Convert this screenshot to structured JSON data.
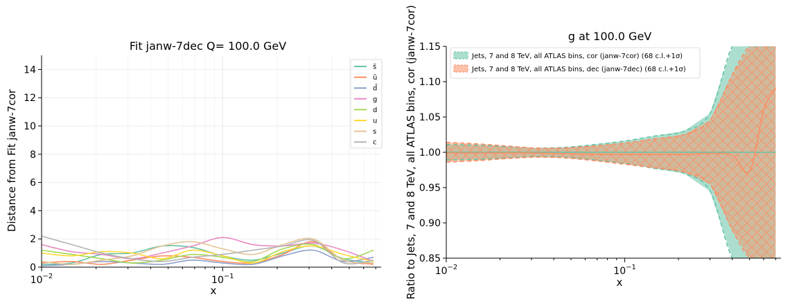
{
  "chart_data": [
    {
      "type": "line",
      "title": "Fit janw-7dec Q= 100.0 GeV",
      "xlabel": "x",
      "ylabel": "Distance from Fit janw-7cor",
      "xscale": "log",
      "xlim": [
        0.01,
        0.75
      ],
      "ylim": [
        0,
        15
      ],
      "yticks": [
        "0",
        "2",
        "4",
        "6",
        "8",
        "10",
        "12",
        "14"
      ],
      "xticks": [
        {
          "base": "10",
          "exp": "−2",
          "x": 0.01
        },
        {
          "base": "10",
          "exp": "−1",
          "x": 0.1
        }
      ],
      "grid": true,
      "legend_position": "top-right",
      "x": [
        0.01,
        0.0147,
        0.0215,
        0.0316,
        0.0464,
        0.0681,
        0.1,
        0.147,
        0.215,
        0.316,
        0.464,
        0.681
      ],
      "series": [
        {
          "name": "s̄",
          "color": "#66c2a5",
          "values": [
            0.2,
            0.3,
            0.9,
            1.0,
            1.5,
            1.4,
            0.8,
            0.5,
            1.0,
            1.5,
            0.6,
            0.3
          ]
        },
        {
          "name": "ū",
          "color": "#fc8d62",
          "values": [
            0.3,
            0.4,
            0.2,
            0.5,
            0.8,
            0.7,
            0.4,
            0.3,
            0.9,
            1.8,
            0.5,
            0.2
          ]
        },
        {
          "name": "d̄",
          "color": "#8da0cb",
          "values": [
            0.1,
            0.2,
            0.4,
            0.3,
            0.2,
            0.5,
            0.3,
            0.2,
            0.8,
            1.2,
            0.4,
            0.7
          ]
        },
        {
          "name": "g",
          "color": "#e78ac3",
          "values": [
            1.6,
            1.1,
            0.9,
            0.6,
            1.0,
            1.5,
            2.1,
            1.6,
            1.5,
            1.7,
            1.2,
            0.4
          ]
        },
        {
          "name": "d",
          "color": "#a6d854",
          "values": [
            1.2,
            0.9,
            0.6,
            0.3,
            0.5,
            0.9,
            0.7,
            0.4,
            1.3,
            1.6,
            0.6,
            1.2
          ]
        },
        {
          "name": "u",
          "color": "#ffd92f",
          "values": [
            1.0,
            0.8,
            1.1,
            1.0,
            0.6,
            1.2,
            0.8,
            0.3,
            1.1,
            1.5,
            0.9,
            0.4
          ]
        },
        {
          "name": "s",
          "color": "#e5c494",
          "values": [
            0.4,
            0.2,
            0.5,
            0.8,
            1.5,
            1.8,
            1.3,
            0.9,
            1.6,
            2.0,
            0.5,
            0.3
          ]
        },
        {
          "name": "c",
          "color": "#b3b3b3",
          "values": [
            2.2,
            1.6,
            1.0,
            0.6,
            0.4,
            0.7,
            0.9,
            1.2,
            1.5,
            1.9,
            0.3,
            0.5
          ]
        }
      ]
    },
    {
      "type": "line",
      "title": "g at 100.0 GeV",
      "xlabel": "x",
      "ylabel": "Ratio to Jets, 7 and 8 TeV, all ATLAS bins, cor (janw-7cor)",
      "xscale": "log",
      "xlim": [
        0.01,
        0.75
      ],
      "ylim": [
        0.85,
        1.15
      ],
      "yticks": [
        "0.85",
        "0.90",
        "0.95",
        "1.00",
        "1.05",
        "1.10",
        "1.15"
      ],
      "xticks": [
        {
          "base": "10",
          "exp": "−2",
          "x": 0.01
        },
        {
          "base": "10",
          "exp": "−1",
          "x": 0.1
        }
      ],
      "grid": false,
      "legend_position": "top-left",
      "x": [
        0.01,
        0.0147,
        0.0215,
        0.0316,
        0.0464,
        0.0681,
        0.1,
        0.147,
        0.215,
        0.3,
        0.4,
        0.5,
        0.6,
        0.7
      ],
      "series": [
        {
          "name": "Jets, 7 and 8 TeV, all ATLAS bins, cor (janw-7cor) (68 c.l.+1σ)",
          "color": "#66c2a5",
          "central": [
            1.0,
            1.0,
            1.0,
            1.0,
            1.0,
            1.0,
            1.0,
            1.0,
            1.0,
            1.0,
            1.0,
            1.0,
            1.0,
            1.0
          ],
          "upper": [
            1.011,
            1.01,
            1.008,
            1.006,
            1.007,
            1.011,
            1.016,
            1.023,
            1.03,
            1.055,
            1.15,
            1.15,
            1.15,
            1.15
          ],
          "lower": [
            0.989,
            0.99,
            0.992,
            0.994,
            0.993,
            0.989,
            0.984,
            0.977,
            0.97,
            0.945,
            0.85,
            0.85,
            0.85,
            0.85
          ]
        },
        {
          "name": "Jets, 7 and 8 TeV, all ATLAS bins, dec (janw-7dec) (68 c.l.+1σ)",
          "color": "#fc8d62",
          "central": [
            0.999,
            0.999,
            0.999,
            0.999,
            0.998,
            0.997,
            0.997,
            0.997,
            0.997,
            0.998,
            0.996,
            0.973,
            1.06,
            1.09
          ],
          "upper": [
            1.014,
            1.012,
            1.009,
            1.006,
            1.006,
            1.009,
            1.013,
            1.019,
            1.025,
            1.045,
            1.11,
            1.15,
            1.15,
            1.15
          ],
          "lower": [
            0.986,
            0.988,
            0.991,
            0.993,
            0.992,
            0.988,
            0.983,
            0.978,
            0.972,
            0.955,
            0.89,
            0.85,
            0.85,
            0.85
          ]
        }
      ]
    }
  ]
}
